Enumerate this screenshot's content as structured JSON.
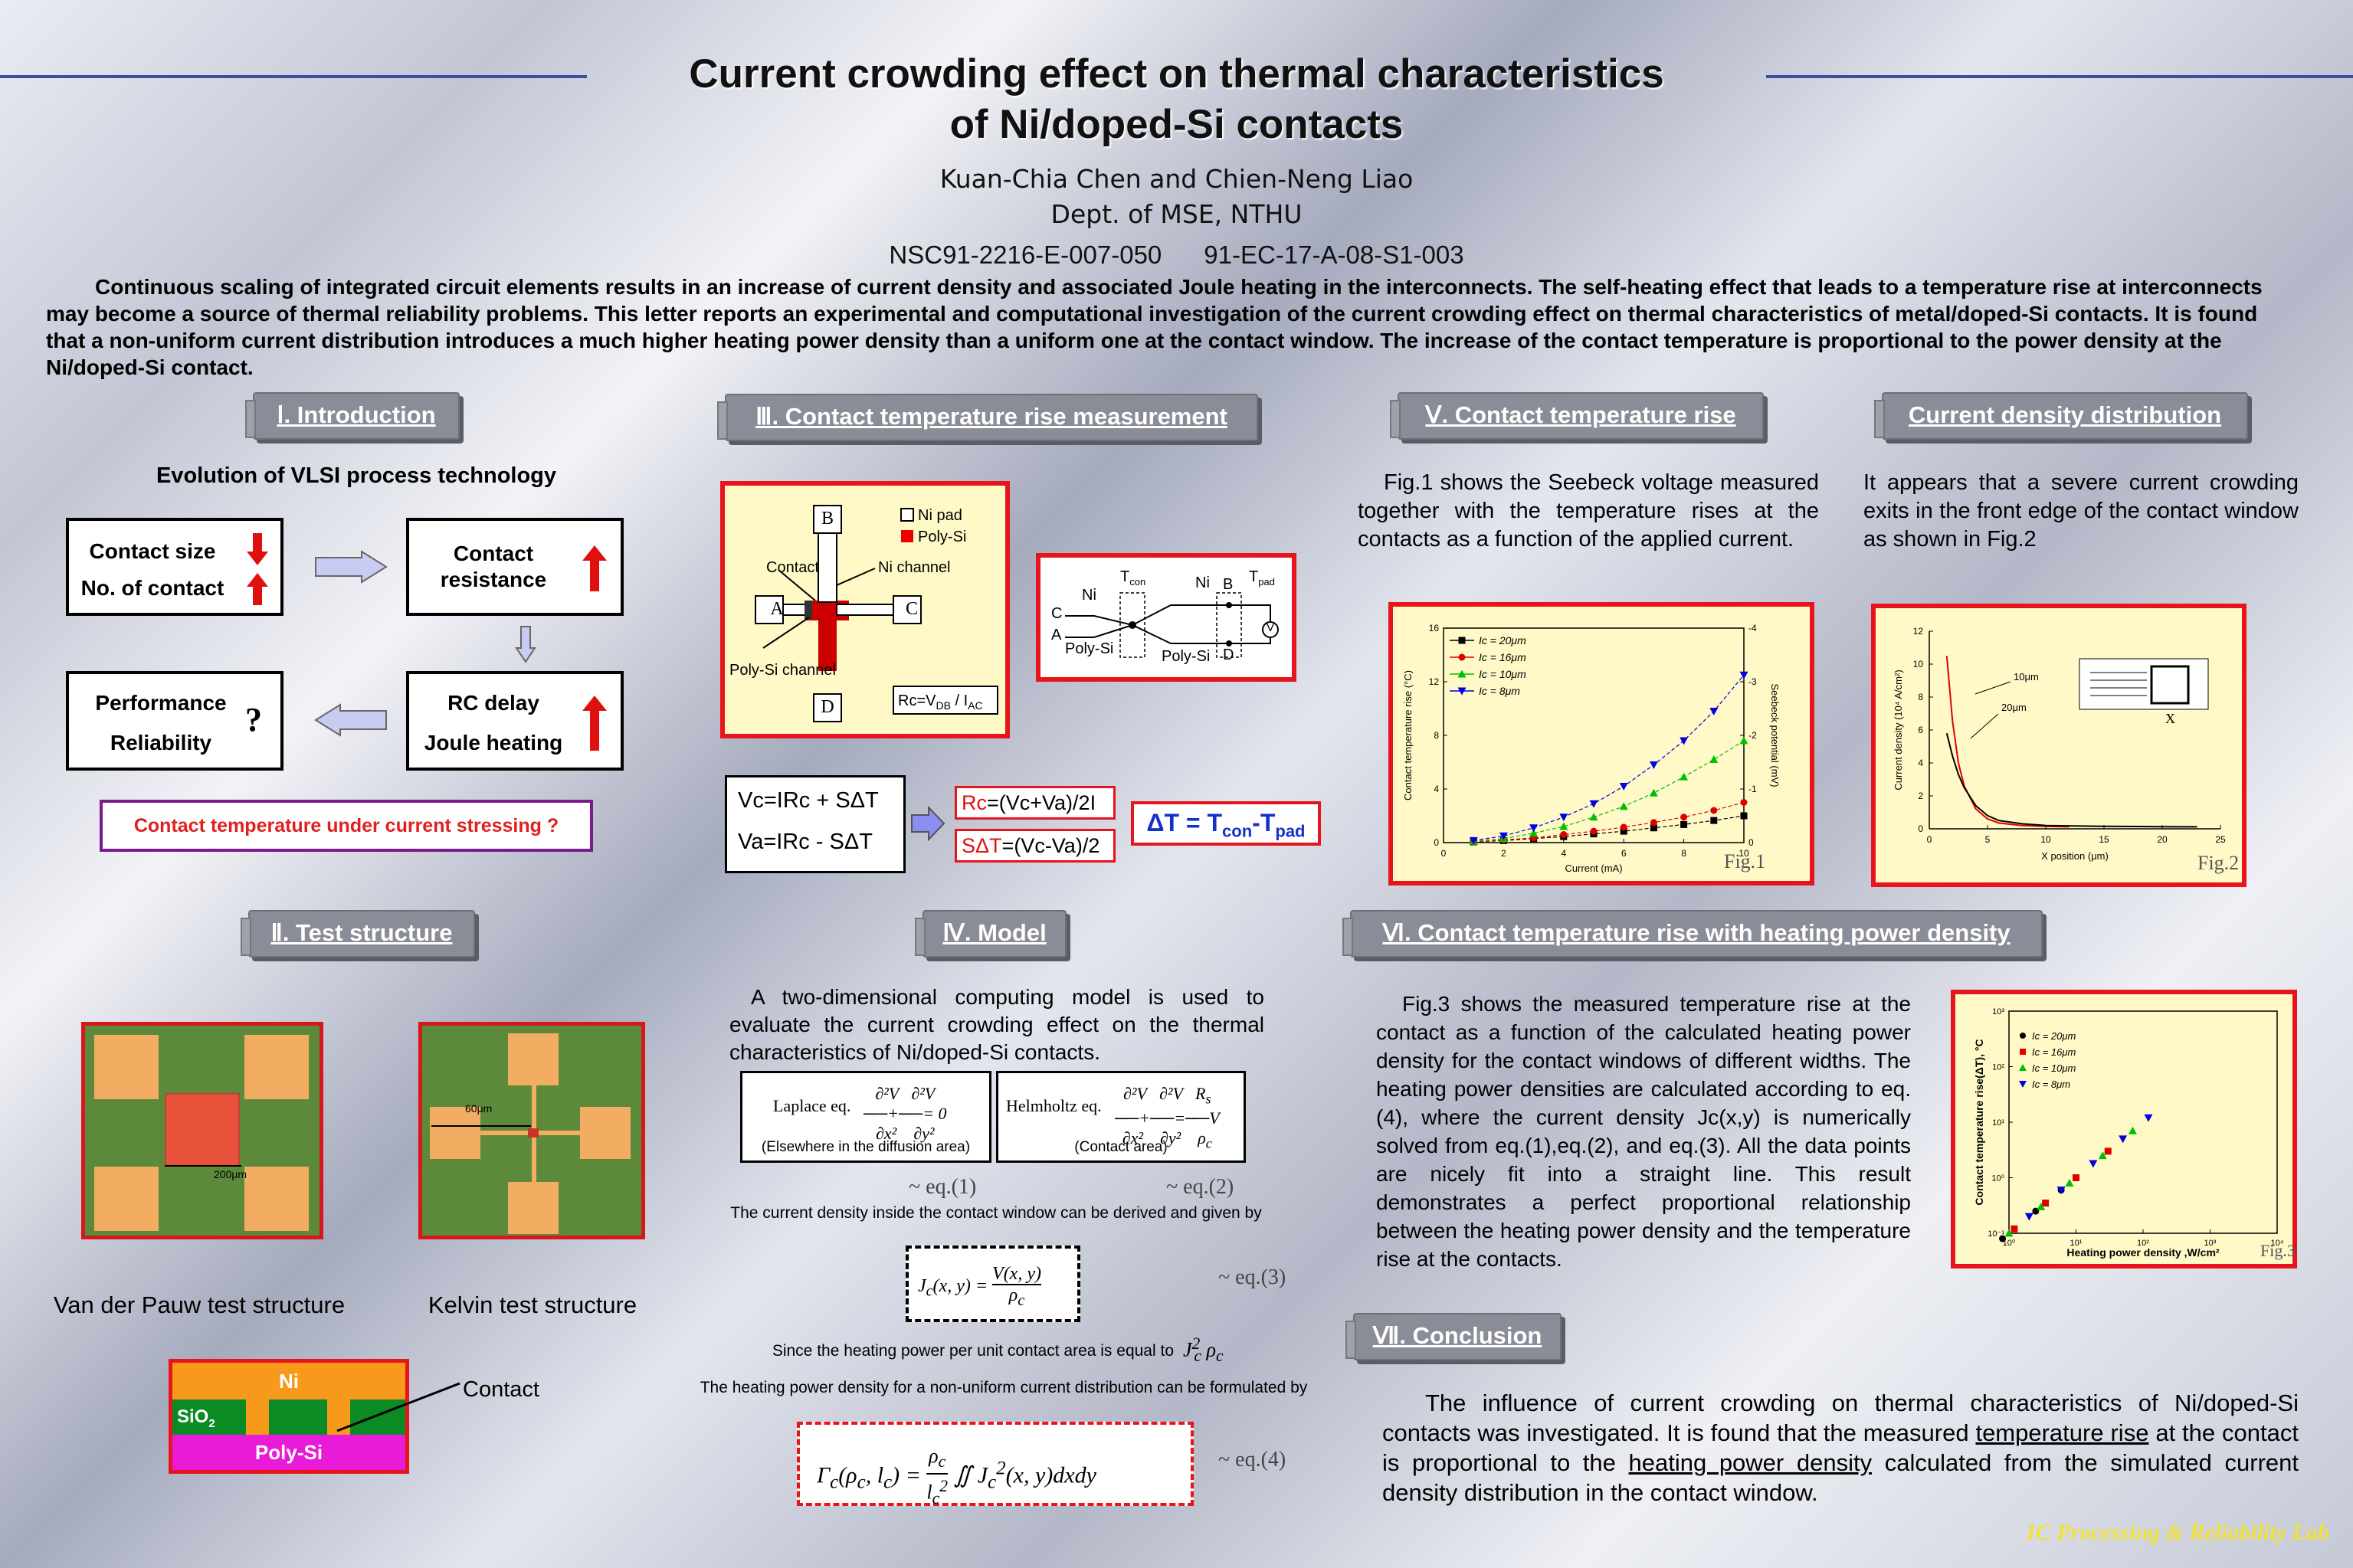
{
  "header": {
    "title_line1": "Current crowding effect on thermal characteristics",
    "title_line2": "of Ni/doped-Si contacts",
    "authors": "Kuan-Chia Chen and Chien-Neng Liao",
    "affiliation": "Dept. of MSE, NTHU",
    "grants": "NSC91-2216-E-007-050      91-EC-17-A-08-S1-003"
  },
  "abstract": "Continuous scaling of integrated circuit elements results in an increase of current density and associated Joule heating in the interconnects. The self-heating effect that leads to a temperature rise at interconnects may become a source of thermal reliability problems. This letter reports an experimental and computational investigation of the current crowding effect on thermal characteristics of metal/doped-Si contacts. It is found that a non-uniform current distribution introduces a much higher heating power density than a uniform one at the contact window. The increase of the contact temperature is proportional to the power density at the Ni/doped-Si contact.",
  "intro": {
    "heading": "Ⅰ. Introduction",
    "subtitle": "Evolution of VLSI process technology",
    "box1_a": "Contact size",
    "box1_b": "No. of contact",
    "box2": "Contact resistance",
    "box3_a": "Performance",
    "box3_b": "Reliability",
    "box3_q": "?",
    "box4_a": "RC delay",
    "box4_b": "Joule heating",
    "question": "Contact temperature under current stressing ?"
  },
  "test": {
    "heading": "Ⅱ. Test structure",
    "vdp_label": "Van der Pauw test structure",
    "vdp_scale": "200μm",
    "kelvin_label": "Kelvin test structure",
    "kelvin_scale": "60μm",
    "ni": "Ni",
    "sio2": "SiO",
    "sio2_sub": "2",
    "polysi": "Poly-Si",
    "contact": "Contact"
  },
  "measure": {
    "heading": "Ⅲ. Contact temperature rise measurement",
    "legend_ni": "Ni pad",
    "legend_poly": "Poly-Si",
    "contact": "Contact",
    "ni_channel": "Ni channel",
    "poly_channel": "Poly-Si channel",
    "A": "A",
    "B": "B",
    "C": "C",
    "D": "D",
    "rc_formula": "Rc=V",
    "rc_sub1": "DB",
    "rc_mid": " / I",
    "rc_sub2": "AC",
    "k_tcon": "T",
    "k_tcon_sub": "con",
    "k_tpad": "T",
    "k_tpad_sub": "pad",
    "k_ni1": "Ni",
    "k_ni2": "Ni",
    "k_poly1": "Poly-Si",
    "k_poly2": "Poly-Si",
    "k_c": "C",
    "k_a": "A",
    "k_b": "B",
    "k_d": "D",
    "k_v": "V",
    "vc": "Vc=IRc + SΔT",
    "va": "Va=IRc - SΔT",
    "rc_eq_a": "Rc",
    "rc_eq_b": "=(Vc+Va)/2I",
    "st_eq_a": "SΔT",
    "st_eq_b": "=(Vc-Va)/2",
    "dt_eq": "ΔT = T",
    "dt_sub1": "con",
    "dt_mid": "-T",
    "dt_sub2": "pad"
  },
  "model": {
    "heading": "Ⅳ. Model",
    "text": "A two-dimensional computing model is used to evaluate the current crowding effect on the thermal characteristics of Ni/doped-Si contacts.",
    "laplace_label": "Laplace eq.",
    "laplace_note": "(Elsewhere in the diffusion area)",
    "helm_label": "Helmholtz eq.",
    "helm_note": "(Contact area)",
    "eq1": "~ eq.(1)",
    "eq2": "~ eq.(2)",
    "line1": "The current density inside the contact window can be derived and given by",
    "eq3": "~ eq.(3)",
    "line2": "Since the heating power per unit contact area is equal to",
    "line3": "The heating power density for a non-uniform current distribution can be formulated by",
    "eq4": "~ eq.(4)"
  },
  "rise": {
    "heading": "Ⅴ. Contact temperature rise",
    "text": "Fig.1 shows the Seebeck voltage measured together with the temperature rises at the contacts as a function of the applied current.",
    "fig": "Fig.1"
  },
  "density": {
    "heading": "Current density distribution",
    "text": "It appears that a severe current crowding exits in the front edge of the contact window as shown in Fig.2",
    "fig": "Fig.2"
  },
  "power": {
    "heading": "Ⅵ. Contact temperature rise  with heating power density",
    "text": "Fig.3 shows the measured temperature rise at the contact as a function of the calculated heating power density for the contact windows of different widths. The heating power densities are calculated according to eq.(4), where the current density Jc(x,y) is numerically solved from eq.(1),eq.(2), and eq.(3). All the data points are nicely fit into a straight line. This result demonstrates a perfect proportional relationship between the heating power density and the temperature rise at the contacts.",
    "fig": "Fig.3"
  },
  "conclusion": {
    "heading": "Ⅶ. Conclusion",
    "t1": "The influence of current crowding on thermal characteristics of Ni/doped-Si contacts was investigated. It is found that the measured ",
    "u1": "temperature rise",
    "t2": " at the contact is proportional to the ",
    "u2": "heating power density",
    "t3": " calculated from the simulated current density distribution in the contact window."
  },
  "footer": "IC Processing & Reliability Lab",
  "chart_data": [
    {
      "type": "line",
      "title": "",
      "xlabel": "Current (mA)",
      "ylabel": "Contact temperature rise (°C)",
      "y2label": "Seebeck potential (mV)",
      "xlim": [
        0,
        10
      ],
      "ylim": [
        0,
        16
      ],
      "y2lim": [
        0,
        4
      ],
      "series": [
        {
          "name": "Ic = 20μm",
          "marker": "square",
          "color": "#000000",
          "x": [
            1,
            2,
            3,
            4,
            5,
            6,
            7,
            8,
            9,
            10
          ],
          "y": [
            0.05,
            0.15,
            0.3,
            0.45,
            0.65,
            0.85,
            1.1,
            1.35,
            1.65,
            2.0
          ]
        },
        {
          "name": "Ic = 16μm",
          "marker": "circle",
          "color": "#e00000",
          "x": [
            1,
            2,
            3,
            4,
            5,
            6,
            7,
            8,
            9,
            10
          ],
          "y": [
            0.05,
            0.2,
            0.35,
            0.6,
            0.85,
            1.15,
            1.5,
            1.9,
            2.4,
            3.0
          ]
        },
        {
          "name": "Ic = 10μm",
          "marker": "triangle",
          "color": "#00c000",
          "x": [
            1,
            2,
            3,
            4,
            5,
            6,
            7,
            8,
            9,
            10
          ],
          "y": [
            0.1,
            0.3,
            0.7,
            1.2,
            1.9,
            2.7,
            3.7,
            4.9,
            6.2,
            7.6
          ]
        },
        {
          "name": "Ic =   8μm",
          "marker": "tri-down",
          "color": "#0000e0",
          "x": [
            1,
            2,
            3,
            4,
            5,
            6,
            7,
            8,
            9,
            10
          ],
          "y": [
            0.15,
            0.5,
            1.1,
            1.9,
            2.9,
            4.2,
            5.8,
            7.6,
            9.8,
            12.5
          ]
        }
      ],
      "xticks": [
        "0",
        "2",
        "4",
        "6",
        "8",
        "10"
      ],
      "yticks": [
        "0",
        "4",
        "8",
        "12",
        "16"
      ],
      "y2ticks": [
        "0",
        "-1",
        "-2",
        "-3",
        "-4"
      ]
    },
    {
      "type": "line",
      "title": "",
      "xlabel": "X position (μm)",
      "ylabel": "Current density (10⁴ A/cm²)",
      "xlim": [
        0,
        25
      ],
      "ylim": [
        0,
        12
      ],
      "series": [
        {
          "name": "10μm",
          "color": "#e00000",
          "x": [
            1.5,
            2,
            2.5,
            3,
            4,
            5,
            6,
            8,
            10,
            12
          ],
          "y": [
            10.5,
            6.5,
            4.0,
            2.6,
            1.2,
            0.6,
            0.35,
            0.2,
            0.15,
            0.12
          ]
        },
        {
          "name": "20μm",
          "color": "#000000",
          "x": [
            1.5,
            2,
            2.5,
            3,
            4,
            5,
            6,
            8,
            10,
            15,
            20,
            23
          ],
          "y": [
            5.8,
            4.4,
            3.3,
            2.5,
            1.4,
            0.8,
            0.5,
            0.3,
            0.2,
            0.15,
            0.13,
            0.12
          ]
        }
      ],
      "xticks": [
        "0",
        "5",
        "10",
        "15",
        "20",
        "25"
      ],
      "yticks": [
        "0",
        "2",
        "4",
        "6",
        "8",
        "10",
        "12"
      ],
      "annot": "X"
    },
    {
      "type": "scatter",
      "title": "",
      "xlabel": "Heating power density ,W/cm²",
      "ylabel": "Contact temperature rise(ΔT), °C",
      "scale": "log",
      "series": [
        {
          "name": "Ic = 20μm",
          "marker": "circle",
          "color": "#000000",
          "x": [
            0.15,
            0.8,
            2.5,
            6
          ],
          "y": [
            0.012,
            0.08,
            0.25,
            0.6
          ]
        },
        {
          "name": "Ic = 16μm",
          "marker": "square",
          "color": "#e00000",
          "x": [
            0.3,
            1.2,
            3.5,
            10,
            30
          ],
          "y": [
            0.02,
            0.12,
            0.35,
            1.0,
            3.0
          ]
        },
        {
          "name": "Ic = 10μm",
          "marker": "triangle",
          "color": "#00c000",
          "x": [
            1,
            3,
            8,
            25,
            70
          ],
          "y": [
            0.1,
            0.3,
            0.8,
            2.5,
            7
          ]
        },
        {
          "name": "Ic =   8μm",
          "marker": "tri-down",
          "color": "#0000e0",
          "x": [
            2,
            6,
            18,
            50,
            120
          ],
          "y": [
            0.2,
            0.6,
            1.8,
            5,
            12
          ]
        }
      ],
      "xticks": [
        "10⁰",
        "10¹",
        "10²",
        "10³",
        "10⁴"
      ],
      "yticks": [
        "10⁻¹",
        "10⁰",
        "10¹",
        "10²",
        "10³"
      ]
    }
  ]
}
